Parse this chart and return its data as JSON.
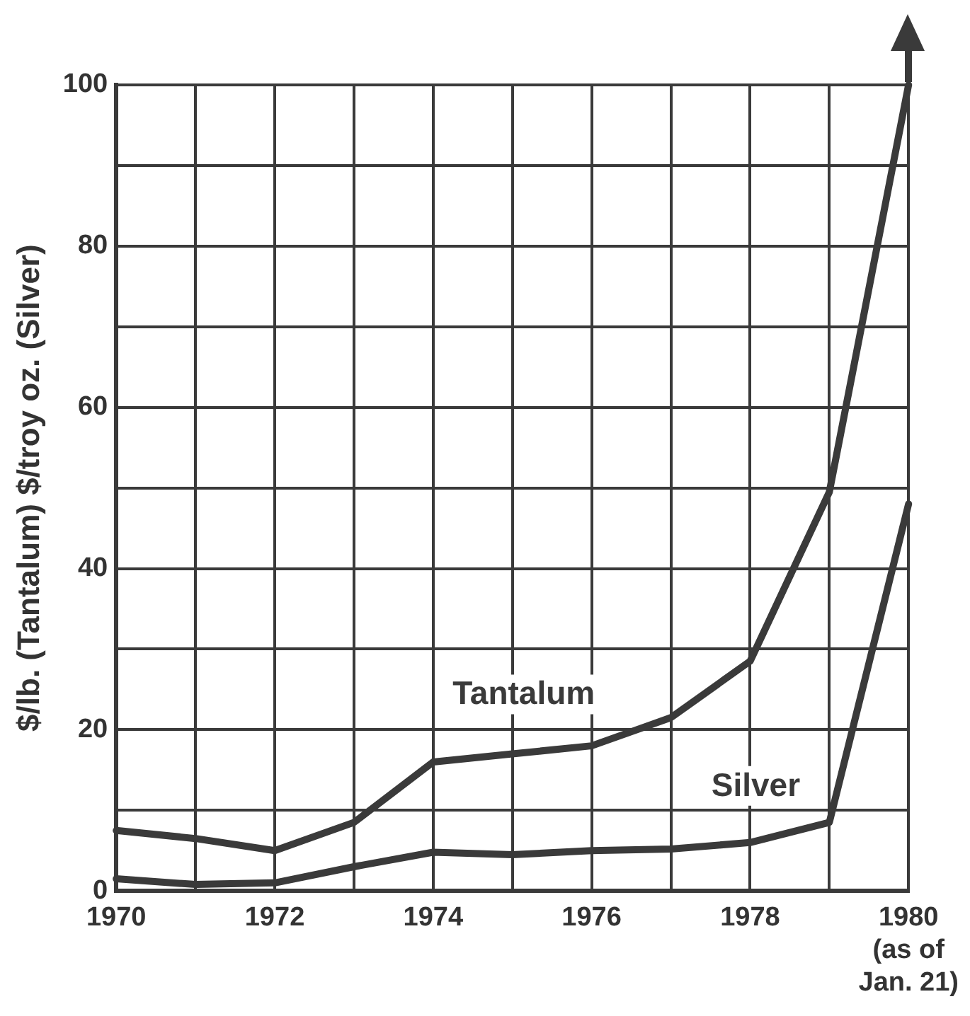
{
  "chart_data": {
    "type": "line",
    "ylabel": "$/lb. (Tantalum) $/troy oz. (Silver)",
    "x": [
      1970,
      1971,
      1972,
      1973,
      1974,
      1975,
      1976,
      1977,
      1978,
      1979,
      1980
    ],
    "series": [
      {
        "name": "Tantalum",
        "color": "#3a3a3a",
        "values": [
          7.5,
          6.5,
          5,
          8.5,
          16,
          17,
          18,
          21.5,
          28.5,
          49.5,
          100
        ]
      },
      {
        "name": "Silver",
        "color": "#3a3a3a",
        "values": [
          1.5,
          0.8,
          1,
          3,
          4.8,
          4.5,
          5,
          5.2,
          6,
          8.5,
          48
        ]
      }
    ],
    "xlim": [
      1970,
      1980
    ],
    "xticks": [
      1970,
      {
        "value": 1971,
        "label": null
      },
      1972,
      {
        "value": 1973,
        "label": null
      },
      1974,
      {
        "value": 1975,
        "label": null
      },
      1976,
      {
        "value": 1977,
        "label": null
      },
      1978,
      {
        "value": 1979,
        "label": null
      },
      {
        "value": 1980,
        "label": "1980\n(as of\nJan. 21)"
      }
    ],
    "ylim": [
      0,
      100
    ],
    "yticks": [
      0,
      {
        "value": 10,
        "label": null
      },
      20,
      {
        "value": 30,
        "label": null
      },
      40,
      {
        "value": 50,
        "label": null
      },
      60,
      {
        "value": 70,
        "label": null
      },
      80,
      {
        "value": 90,
        "label": null
      },
      100
    ],
    "grid": true,
    "legend": false,
    "marker": "none",
    "line_style": "solid"
  }
}
